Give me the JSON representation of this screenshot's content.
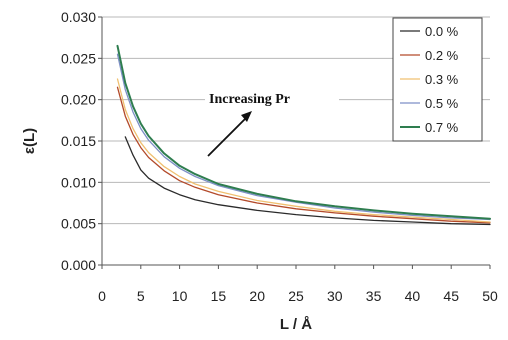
{
  "chart_data": {
    "type": "line",
    "xlabel": "L / Å",
    "ylabel": "ε(L)",
    "xlim": [
      0,
      50
    ],
    "ylim": [
      0,
      0.03
    ],
    "x_ticks": [
      "0",
      "5",
      "10",
      "15",
      "20",
      "25",
      "30",
      "35",
      "40",
      "45",
      "50"
    ],
    "y_ticks": [
      "0.000",
      "0.005",
      "0.010",
      "0.015",
      "0.020",
      "0.025",
      "0.030"
    ],
    "grid": "horizontal",
    "legend_position": "top-right",
    "annotation": "Increasing Pr",
    "series": [
      {
        "name": "0.0 %",
        "color": "#2b2b2b",
        "x": [
          3,
          4,
          5,
          6,
          8,
          10,
          12,
          15,
          20,
          25,
          30,
          35,
          40,
          45,
          50
        ],
        "y": [
          0.0155,
          0.0133,
          0.0115,
          0.0105,
          0.0093,
          0.0085,
          0.0079,
          0.0073,
          0.0066,
          0.0061,
          0.0057,
          0.0054,
          0.0052,
          0.005,
          0.0049
        ]
      },
      {
        "name": "0.2 %",
        "color": "#b34a2a",
        "x": [
          2,
          3,
          4,
          5,
          6,
          8,
          10,
          12,
          15,
          20,
          25,
          30,
          35,
          40,
          45,
          50
        ],
        "y": [
          0.0215,
          0.018,
          0.0158,
          0.0142,
          0.013,
          0.0114,
          0.0102,
          0.0094,
          0.0085,
          0.0075,
          0.0068,
          0.0063,
          0.0059,
          0.0056,
          0.0053,
          0.0051
        ]
      },
      {
        "name": "0.3 %",
        "color": "#f0c070",
        "x": [
          2,
          3,
          4,
          5,
          6,
          8,
          10,
          12,
          15,
          20,
          25,
          30,
          35,
          40,
          45,
          50
        ],
        "y": [
          0.0225,
          0.0188,
          0.0165,
          0.0148,
          0.0136,
          0.0119,
          0.0107,
          0.0098,
          0.0089,
          0.0078,
          0.0071,
          0.0065,
          0.0061,
          0.0058,
          0.0055,
          0.0052
        ]
      },
      {
        "name": "0.5 %",
        "color": "#7d8fc6",
        "x": [
          2,
          3,
          4,
          5,
          6,
          8,
          10,
          12,
          15,
          20,
          25,
          30,
          35,
          40,
          45,
          50
        ],
        "y": [
          0.0255,
          0.0212,
          0.0185,
          0.0165,
          0.0151,
          0.0131,
          0.0117,
          0.0107,
          0.0096,
          0.0084,
          0.0076,
          0.0069,
          0.0064,
          0.006,
          0.0057,
          0.0055
        ]
      },
      {
        "name": "0.7 %",
        "color": "#2e7d4f",
        "x": [
          2,
          3,
          4,
          5,
          6,
          8,
          10,
          12,
          15,
          20,
          25,
          30,
          35,
          40,
          45,
          50
        ],
        "y": [
          0.0265,
          0.022,
          0.0192,
          0.0171,
          0.0156,
          0.0135,
          0.012,
          0.011,
          0.0098,
          0.0086,
          0.0077,
          0.0071,
          0.0066,
          0.0062,
          0.0059,
          0.0056
        ]
      }
    ]
  }
}
